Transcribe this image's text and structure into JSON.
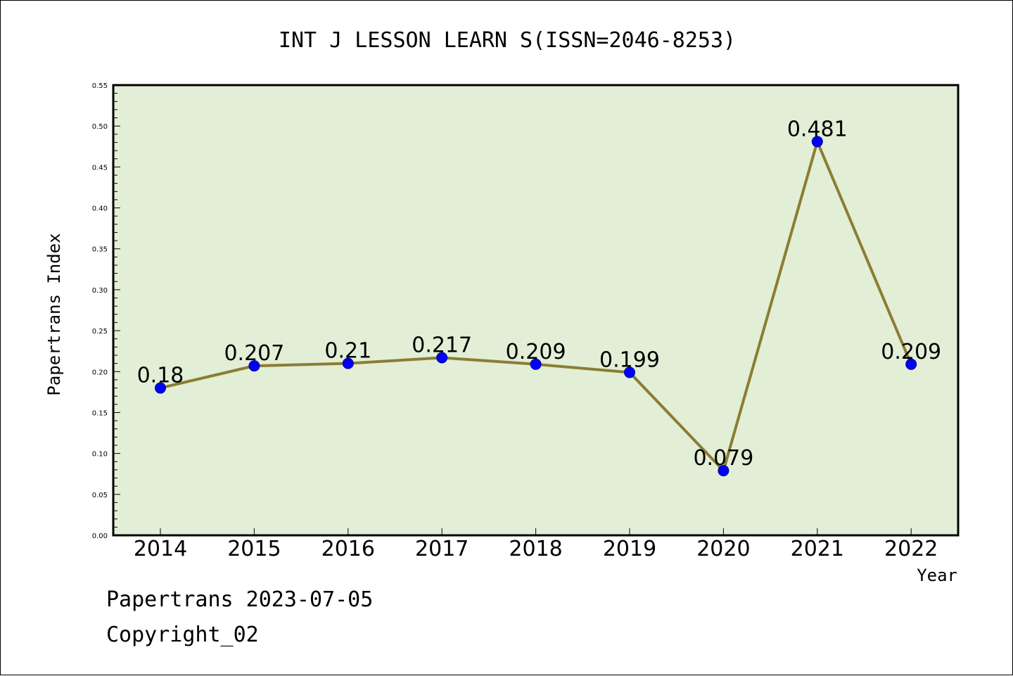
{
  "chart_data": {
    "type": "line",
    "title": "INT J LESSON LEARN S(ISSN=2046-8253)",
    "xlabel": "Year",
    "ylabel": "Papertrans Index",
    "categories": [
      "2014",
      "2015",
      "2016",
      "2017",
      "2018",
      "2019",
      "2020",
      "2021",
      "2022"
    ],
    "values": [
      0.18,
      0.207,
      0.21,
      0.217,
      0.209,
      0.199,
      0.079,
      0.481,
      0.209
    ],
    "data_labels": [
      "0.18",
      "0.207",
      "0.21",
      "0.217",
      "0.209",
      "0.199",
      "0.079",
      "0.481",
      "0.209"
    ],
    "ylim": [
      0,
      0.55
    ],
    "yticks": [
      "0.00",
      "0.05",
      "0.10",
      "0.15",
      "0.20",
      "0.25",
      "0.30",
      "0.35",
      "0.40",
      "0.45",
      "0.50",
      "0.55"
    ],
    "grid": false,
    "legend": "none",
    "colors": {
      "plot_background": "#e2efd6",
      "line": "#8b7d34",
      "marker": "#0000ff",
      "marker_edge": "#00008b",
      "frame": "#000000"
    }
  },
  "footer": {
    "line1": "Papertrans 2023-07-05",
    "line2": "Copyright_02"
  }
}
